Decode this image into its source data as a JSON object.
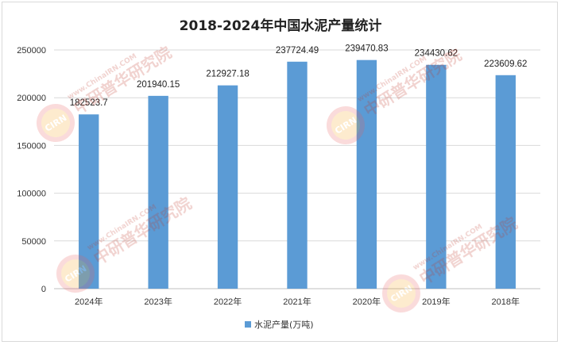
{
  "chart_data": {
    "type": "bar",
    "title": "2018-2024年中国水泥产量统计",
    "categories": [
      "2024年",
      "2023年",
      "2022年",
      "2021年",
      "2020年",
      "2019年",
      "2018年"
    ],
    "series": [
      {
        "name": "水泥产量(万吨)",
        "values": [
          182523.7,
          201940.15,
          212927.18,
          237724.49,
          239470.83,
          234430.62,
          223609.62
        ],
        "labels": [
          "182523.7",
          "201940.15",
          "212927.18",
          "237724.49",
          "239470.83",
          "234430.62",
          "223609.62"
        ],
        "color": "#5b9bd5"
      }
    ],
    "yticks": [
      "0",
      "50000",
      "100000",
      "150000",
      "200000",
      "250000"
    ],
    "ylim": [
      0,
      250000
    ],
    "grid": true,
    "legend": "bottom",
    "xlabel": "",
    "ylabel": ""
  },
  "watermark": {
    "logo_text": "CIRN",
    "brand_cn": "中研普华研究院",
    "brand_en": "www.ChinaIRN.COM"
  }
}
